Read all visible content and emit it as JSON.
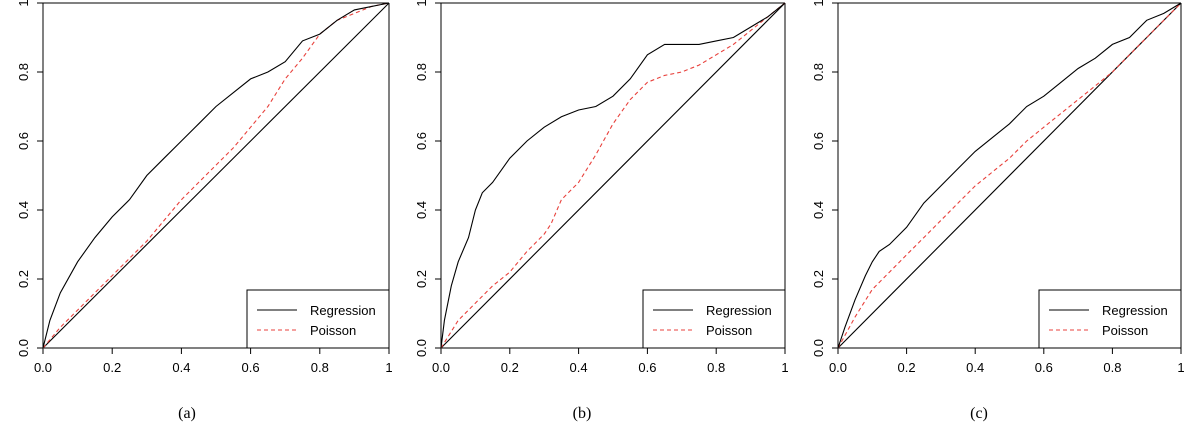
{
  "chart_data": [
    {
      "type": "line",
      "caption": "(a)",
      "xlim": [
        0,
        1
      ],
      "ylim": [
        0,
        1
      ],
      "x_ticks": [
        "0.0",
        "0.2",
        "0.4",
        "0.6",
        "0.8",
        "1"
      ],
      "y_ticks": [
        "0.0",
        "0.2",
        "0.4",
        "0.6",
        "0.8",
        "1"
      ],
      "grid": false,
      "legend_position": "bottom-right",
      "series": [
        {
          "name": "Regression",
          "color": "#000000",
          "dash": "solid",
          "x": [
            0,
            0.02,
            0.05,
            0.1,
            0.15,
            0.2,
            0.25,
            0.3,
            0.35,
            0.4,
            0.45,
            0.5,
            0.55,
            0.6,
            0.65,
            0.7,
            0.75,
            0.8,
            0.85,
            0.9,
            0.95,
            1
          ],
          "y": [
            0,
            0.08,
            0.16,
            0.25,
            0.32,
            0.38,
            0.43,
            0.5,
            0.55,
            0.6,
            0.65,
            0.7,
            0.74,
            0.78,
            0.8,
            0.83,
            0.89,
            0.91,
            0.95,
            0.98,
            0.99,
            1
          ]
        },
        {
          "name": "Poisson",
          "color": "#e8413c",
          "dash": "dashed",
          "x": [
            0,
            0.05,
            0.1,
            0.15,
            0.2,
            0.25,
            0.3,
            0.35,
            0.4,
            0.45,
            0.5,
            0.55,
            0.6,
            0.65,
            0.7,
            0.75,
            0.8,
            0.85,
            0.9,
            0.95,
            1
          ],
          "y": [
            0,
            0.06,
            0.11,
            0.16,
            0.21,
            0.26,
            0.31,
            0.37,
            0.43,
            0.48,
            0.53,
            0.58,
            0.64,
            0.7,
            0.78,
            0.84,
            0.91,
            0.95,
            0.97,
            0.99,
            1
          ]
        },
        {
          "name": "",
          "color": "#000000",
          "dash": "solid",
          "x": [
            0,
            1
          ],
          "y": [
            0,
            1
          ]
        }
      ]
    },
    {
      "type": "line",
      "caption": "(b)",
      "xlim": [
        0,
        1
      ],
      "ylim": [
        0,
        1
      ],
      "x_ticks": [
        "0.0",
        "0.2",
        "0.4",
        "0.6",
        "0.8",
        "1"
      ],
      "y_ticks": [
        "0.0",
        "0.2",
        "0.4",
        "0.6",
        "0.8",
        "1"
      ],
      "grid": false,
      "legend_position": "bottom-right",
      "series": [
        {
          "name": "Regression",
          "color": "#000000",
          "dash": "solid",
          "x": [
            0,
            0.01,
            0.03,
            0.05,
            0.08,
            0.1,
            0.12,
            0.15,
            0.2,
            0.25,
            0.3,
            0.35,
            0.4,
            0.45,
            0.5,
            0.55,
            0.6,
            0.65,
            0.7,
            0.75,
            0.8,
            0.85,
            0.9,
            0.95,
            1
          ],
          "y": [
            0,
            0.08,
            0.18,
            0.25,
            0.32,
            0.4,
            0.45,
            0.48,
            0.55,
            0.6,
            0.64,
            0.67,
            0.69,
            0.7,
            0.73,
            0.78,
            0.85,
            0.88,
            0.88,
            0.88,
            0.89,
            0.9,
            0.93,
            0.96,
            1
          ]
        },
        {
          "name": "Poisson",
          "color": "#e8413c",
          "dash": "dashed",
          "x": [
            0,
            0.05,
            0.1,
            0.15,
            0.2,
            0.25,
            0.3,
            0.32,
            0.35,
            0.4,
            0.45,
            0.5,
            0.55,
            0.6,
            0.65,
            0.7,
            0.75,
            0.8,
            0.85,
            0.9,
            0.95,
            1
          ],
          "y": [
            0,
            0.08,
            0.13,
            0.18,
            0.22,
            0.28,
            0.33,
            0.36,
            0.43,
            0.48,
            0.56,
            0.65,
            0.72,
            0.77,
            0.79,
            0.8,
            0.82,
            0.85,
            0.88,
            0.92,
            0.96,
            1
          ]
        },
        {
          "name": "",
          "color": "#000000",
          "dash": "solid",
          "x": [
            0,
            1
          ],
          "y": [
            0,
            1
          ]
        }
      ]
    },
    {
      "type": "line",
      "caption": "(c)",
      "xlim": [
        0,
        1
      ],
      "ylim": [
        0,
        1
      ],
      "x_ticks": [
        "0.0",
        "0.2",
        "0.4",
        "0.6",
        "0.8",
        "1"
      ],
      "y_ticks": [
        "0.0",
        "0.2",
        "0.4",
        "0.6",
        "0.8",
        "1"
      ],
      "grid": false,
      "legend_position": "bottom-right",
      "series": [
        {
          "name": "Regression",
          "color": "#000000",
          "dash": "solid",
          "x": [
            0,
            0.02,
            0.05,
            0.08,
            0.1,
            0.12,
            0.15,
            0.2,
            0.25,
            0.3,
            0.35,
            0.4,
            0.45,
            0.5,
            0.55,
            0.6,
            0.65,
            0.7,
            0.75,
            0.8,
            0.85,
            0.9,
            0.95,
            1
          ],
          "y": [
            0,
            0.06,
            0.14,
            0.21,
            0.25,
            0.28,
            0.3,
            0.35,
            0.42,
            0.47,
            0.52,
            0.57,
            0.61,
            0.65,
            0.7,
            0.73,
            0.77,
            0.81,
            0.84,
            0.88,
            0.9,
            0.95,
            0.97,
            1
          ]
        },
        {
          "name": "Poisson",
          "color": "#e8413c",
          "dash": "dashed",
          "x": [
            0,
            0.05,
            0.1,
            0.15,
            0.2,
            0.25,
            0.3,
            0.35,
            0.4,
            0.45,
            0.5,
            0.55,
            0.6,
            0.65,
            0.7,
            0.75,
            0.8,
            0.85,
            0.9,
            0.95,
            1
          ],
          "y": [
            0,
            0.09,
            0.17,
            0.22,
            0.27,
            0.32,
            0.37,
            0.42,
            0.47,
            0.51,
            0.55,
            0.6,
            0.64,
            0.68,
            0.72,
            0.76,
            0.8,
            0.85,
            0.9,
            0.95,
            1
          ]
        },
        {
          "name": "",
          "color": "#000000",
          "dash": "solid",
          "x": [
            0,
            1
          ],
          "y": [
            0,
            1
          ]
        }
      ]
    }
  ]
}
